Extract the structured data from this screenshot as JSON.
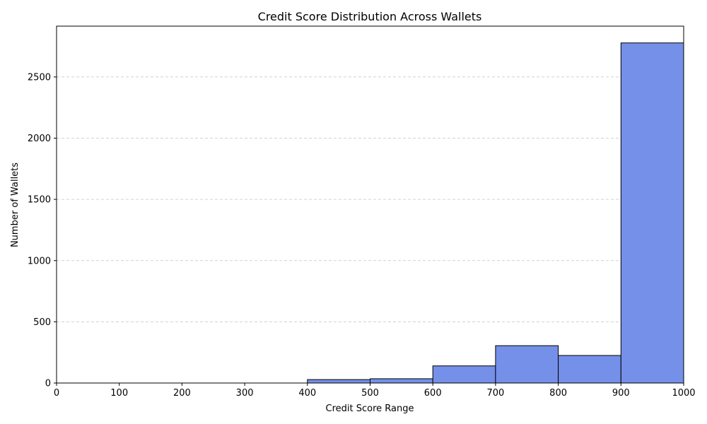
{
  "chart_data": {
    "type": "bar",
    "title": "Credit Score Distribution Across Wallets",
    "xlabel": "Credit Score Range",
    "ylabel": "Number of Wallets",
    "bins": [
      {
        "start": 0,
        "end": 100,
        "count": 0
      },
      {
        "start": 100,
        "end": 200,
        "count": 0
      },
      {
        "start": 200,
        "end": 300,
        "count": 0
      },
      {
        "start": 300,
        "end": 400,
        "count": 0
      },
      {
        "start": 400,
        "end": 500,
        "count": 28
      },
      {
        "start": 500,
        "end": 600,
        "count": 35
      },
      {
        "start": 600,
        "end": 700,
        "count": 140
      },
      {
        "start": 700,
        "end": 800,
        "count": 305
      },
      {
        "start": 800,
        "end": 900,
        "count": 225
      },
      {
        "start": 900,
        "end": 1000,
        "count": 2778
      }
    ],
    "xlim": [
      0,
      1000
    ],
    "ylim": [
      0,
      2915
    ],
    "xticks": [
      0,
      100,
      200,
      300,
      400,
      500,
      600,
      700,
      800,
      900,
      1000
    ],
    "yticks": [
      0,
      500,
      1000,
      1500,
      2000,
      2500
    ],
    "bar_color": "#7590e8",
    "edge_color": "#000000",
    "grid": "y-axis dashed"
  }
}
